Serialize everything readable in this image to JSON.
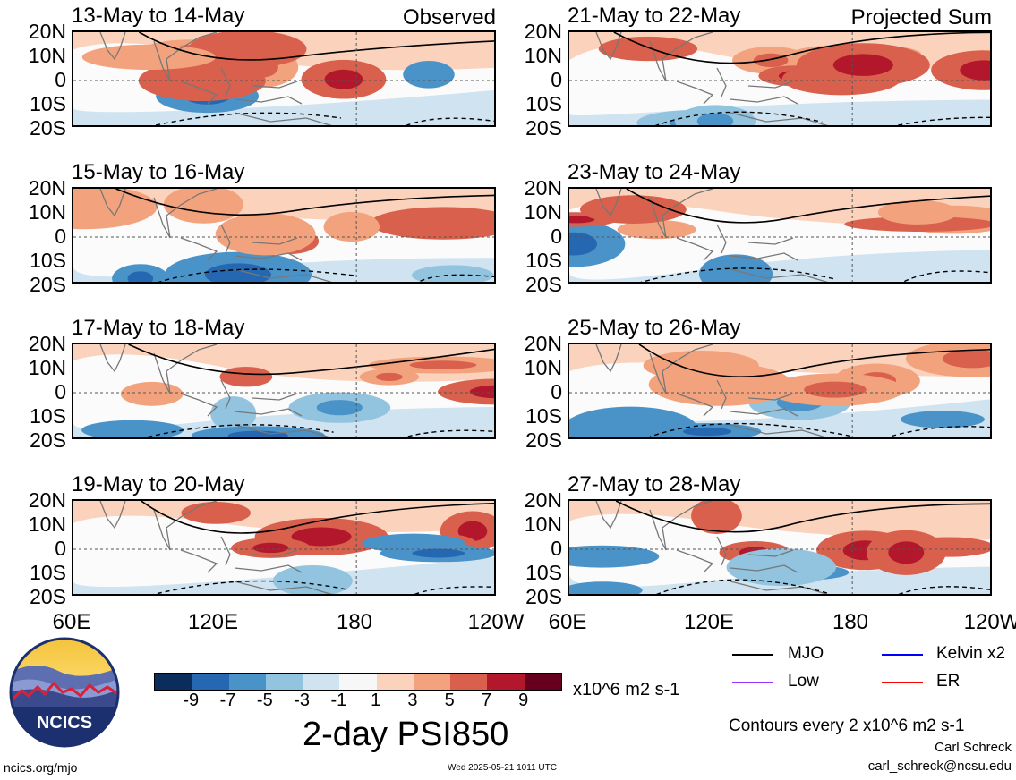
{
  "panels": [
    {
      "title": "13-May to 14-May",
      "tag": "Observed"
    },
    {
      "title": "15-May to 16-May",
      "tag": ""
    },
    {
      "title": "17-May to 18-May",
      "tag": ""
    },
    {
      "title": "19-May to 20-May",
      "tag": ""
    },
    {
      "title": "21-May to 22-May",
      "tag": "Projected Sum"
    },
    {
      "title": "23-May to 24-May",
      "tag": ""
    },
    {
      "title": "25-May to 26-May",
      "tag": ""
    },
    {
      "title": "27-May to 28-May",
      "tag": ""
    }
  ],
  "lat_labels": [
    "20N",
    "10N",
    "0",
    "10S",
    "20S"
  ],
  "lon_labels": [
    "60E",
    "120E",
    "180",
    "120W"
  ],
  "colorbar": {
    "colors": [
      "#0b2d5c",
      "#2567b0",
      "#4a93c9",
      "#92c3df",
      "#cfe3f0",
      "#f7f7f7",
      "#fbd3bd",
      "#f3a27e",
      "#d8604c",
      "#b2172b",
      "#67001f"
    ],
    "tick_labels": [
      "-9",
      "-7",
      "-5",
      "-3",
      "-1",
      "1",
      "3",
      "5",
      "7",
      "9"
    ],
    "units": "x10^6 m2 s-1"
  },
  "title": "2-day PSI850",
  "legend": [
    {
      "label": "MJO",
      "color": "#000000"
    },
    {
      "label": "Kelvin x2",
      "color": "#0000ff"
    },
    {
      "label": "Low",
      "color": "#9933ff"
    },
    {
      "label": "ER",
      "color": "#ff0000"
    }
  ],
  "contour_note": "Contours every 2 x10^6 m2 s-1",
  "author": "Carl Schreck",
  "email": "carl_schreck@ncsu.edu",
  "site": "ncics.org/mjo",
  "timestamp": "Wed 2025-05-21 1011 UTC",
  "logo_text": "NCICS"
}
